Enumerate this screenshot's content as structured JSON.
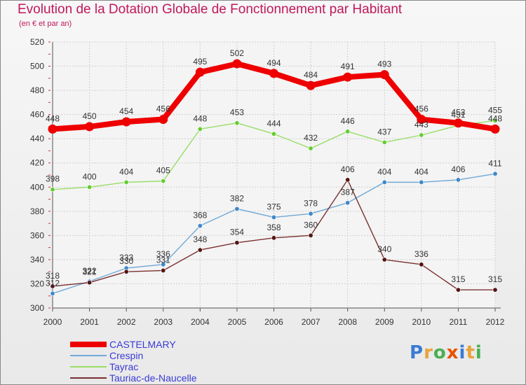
{
  "header": {
    "title": "Evolution de la Dotation Globale de Fonctionnement par Habitant",
    "subtitle": "(en € et par an)"
  },
  "logo": {
    "text": "Proxiti",
    "letter_colors": [
      "#3a7bd5",
      "#e8a33a",
      "#4caf50",
      "#e65100",
      "#3a7bd5",
      "#e8a33a",
      "#4caf50"
    ]
  },
  "chart_data": {
    "type": "line",
    "title": "Evolution de la Dotation Globale de Fonctionnement par Habitant",
    "subtitle": "(en € et par an)",
    "xlabel": "",
    "ylabel": "",
    "x": [
      "2000",
      "2001",
      "2002",
      "2003",
      "2004",
      "2005",
      "2006",
      "2007",
      "2008",
      "2009",
      "2010",
      "2011",
      "2012"
    ],
    "ylim": [
      300,
      520
    ],
    "yticks": [
      300,
      320,
      340,
      360,
      380,
      400,
      420,
      440,
      460,
      480,
      500,
      520
    ],
    "grid": true,
    "legend_position": "bottom-left",
    "series": [
      {
        "name": "CASTELMARY",
        "color": "#ee0000",
        "marker_color": "#ee0000",
        "emphasis": "thick",
        "values": [
          448,
          450,
          454,
          456,
          495,
          502,
          494,
          484,
          491,
          493,
          456,
          453,
          448
        ]
      },
      {
        "name": "Crespin",
        "color": "#6fa8d6",
        "marker_color": "#3f88c8",
        "emphasis": "thin",
        "values": [
          312,
          322,
          333,
          336,
          368,
          382,
          375,
          378,
          387,
          404,
          404,
          406,
          411
        ]
      },
      {
        "name": "Tayrac",
        "color": "#99dd66",
        "marker_color": "#66cc33",
        "emphasis": "thin",
        "values": [
          398,
          400,
          404,
          405,
          448,
          453,
          444,
          432,
          446,
          437,
          443,
          451,
          455
        ]
      },
      {
        "name": "Tauriac-de-Naucelle",
        "color": "#7a3030",
        "marker_color": "#551515",
        "emphasis": "thin",
        "values": [
          318,
          321,
          330,
          331,
          348,
          354,
          358,
          360,
          406,
          340,
          336,
          315,
          315
        ]
      }
    ]
  }
}
